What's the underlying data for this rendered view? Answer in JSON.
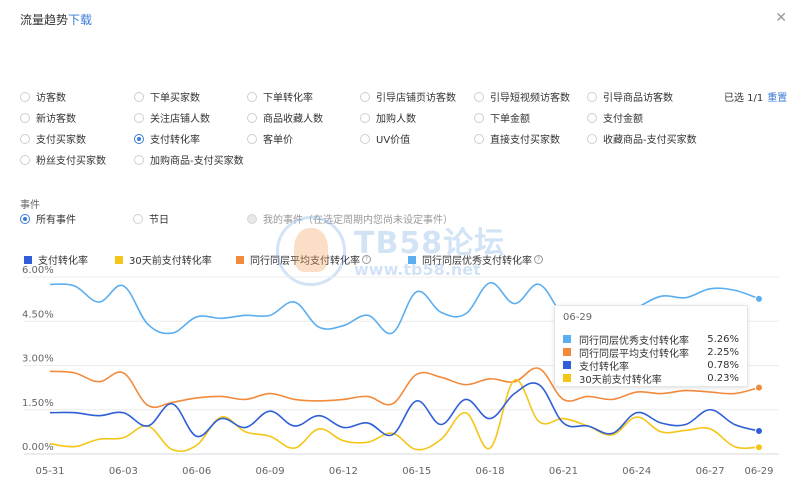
{
  "header": {
    "title": "流量趋势",
    "download_label": "下载",
    "close_icon": "close-icon"
  },
  "metrics": [
    {
      "label": "访客数",
      "checked": false
    },
    {
      "label": "下单买家数",
      "checked": false
    },
    {
      "label": "下单转化率",
      "checked": false
    },
    {
      "label": "引导店铺页访客数",
      "checked": false
    },
    {
      "label": "引导短视频访客数",
      "checked": false
    },
    {
      "label": "引导商品访客数",
      "checked": false
    },
    {
      "label": "新访客数",
      "checked": false
    },
    {
      "label": "关注店铺人数",
      "checked": false
    },
    {
      "label": "商品收藏人数",
      "checked": false
    },
    {
      "label": "加购人数",
      "checked": false
    },
    {
      "label": "下单金额",
      "checked": false
    },
    {
      "label": "支付金额",
      "checked": false
    },
    {
      "label": "支付买家数",
      "checked": false
    },
    {
      "label": "支付转化率",
      "checked": true
    },
    {
      "label": "客单价",
      "checked": false
    },
    {
      "label": "UV价值",
      "checked": false
    },
    {
      "label": "直接支付买家数",
      "checked": false
    },
    {
      "label": "收藏商品-支付买家数",
      "checked": false
    },
    {
      "label": "粉丝支付买家数",
      "checked": false
    },
    {
      "label": "加购商品-支付买家数",
      "checked": false
    }
  ],
  "selection": {
    "text": "已选 1/1",
    "reset_label": "重置"
  },
  "events": {
    "title": "事件",
    "options": [
      {
        "label": "所有事件",
        "checked": true,
        "disabled": false
      },
      {
        "label": "节日",
        "checked": false,
        "disabled": false
      },
      {
        "label": "我的事件（在选定周期内您尚未设定事件）",
        "checked": false,
        "disabled": true
      }
    ]
  },
  "watermark": {
    "brand": "TB58论坛",
    "url": "www.tb58.net"
  },
  "tooltip": {
    "date": "06-29",
    "rows": [
      {
        "name": "同行同层优秀支付转化率",
        "value": "5.26%",
        "color": "#5aaef0"
      },
      {
        "name": "同行同层平均支付转化率",
        "value": "2.25%",
        "color": "#f28a3c"
      },
      {
        "name": "支付转化率",
        "value": "0.78%",
        "color": "#2f5fd6"
      },
      {
        "name": "30天前支付转化率",
        "value": "0.23%",
        "color": "#f5c518"
      }
    ]
  },
  "chart_data": {
    "type": "line",
    "title": "",
    "xlabel": "",
    "ylabel": "",
    "ylim": [
      0,
      6
    ],
    "y_ticks": [
      "0.00%",
      "1.50%",
      "3.00%",
      "4.50%",
      "6.00%"
    ],
    "grid": true,
    "legend_position": "top-left",
    "x": [
      "05-31",
      "06-01",
      "06-02",
      "06-03",
      "06-04",
      "06-05",
      "06-06",
      "06-07",
      "06-08",
      "06-09",
      "06-10",
      "06-11",
      "06-12",
      "06-13",
      "06-14",
      "06-15",
      "06-16",
      "06-17",
      "06-18",
      "06-19",
      "06-20",
      "06-21",
      "06-22",
      "06-23",
      "06-24",
      "06-25",
      "06-26",
      "06-27",
      "06-28",
      "06-29"
    ],
    "x_tick_labels": [
      "05-31",
      "06-03",
      "06-06",
      "06-09",
      "06-12",
      "06-15",
      "06-18",
      "06-21",
      "06-24",
      "06-27",
      "06-29"
    ],
    "series": [
      {
        "name": "支付转化率",
        "color": "#2f5fd6",
        "values": [
          1.4,
          1.4,
          1.3,
          1.4,
          0.95,
          1.7,
          0.6,
          1.2,
          0.9,
          1.45,
          0.95,
          1.3,
          0.9,
          1.05,
          0.65,
          1.8,
          1.0,
          1.85,
          1.2,
          2.05,
          2.35,
          1.05,
          0.95,
          0.7,
          1.4,
          1.05,
          1.0,
          1.5,
          1.0,
          0.78
        ]
      },
      {
        "name": "30天前支付转化率",
        "color": "#f5c518",
        "values": [
          0.35,
          0.25,
          0.5,
          0.55,
          0.95,
          0.15,
          0.3,
          1.25,
          0.75,
          0.6,
          0.2,
          0.85,
          0.45,
          0.4,
          0.7,
          0.15,
          0.5,
          1.4,
          0.2,
          2.5,
          1.1,
          1.2,
          0.95,
          0.65,
          1.25,
          0.75,
          0.8,
          0.85,
          0.25,
          0.23
        ]
      },
      {
        "name": "同行同层平均支付转化率",
        "color": "#f28a3c",
        "values": [
          2.8,
          2.75,
          2.45,
          2.75,
          1.65,
          1.75,
          1.9,
          1.95,
          1.85,
          2.05,
          1.85,
          1.8,
          1.85,
          1.95,
          1.7,
          2.7,
          2.6,
          2.35,
          2.55,
          2.45,
          2.9,
          1.85,
          1.95,
          1.85,
          2.1,
          2.05,
          2.15,
          2.1,
          2.05,
          2.25
        ]
      },
      {
        "name": "同行同层优秀支付转化率",
        "color": "#5aaef0",
        "values": [
          5.75,
          5.7,
          5.15,
          5.7,
          4.4,
          4.1,
          4.65,
          4.6,
          4.7,
          4.7,
          5.15,
          4.3,
          4.35,
          4.7,
          4.1,
          5.5,
          4.8,
          4.75,
          5.8,
          5.1,
          5.75,
          4.7,
          4.4,
          4.5,
          4.95,
          5.35,
          5.3,
          5.6,
          5.55,
          5.26
        ]
      }
    ]
  }
}
